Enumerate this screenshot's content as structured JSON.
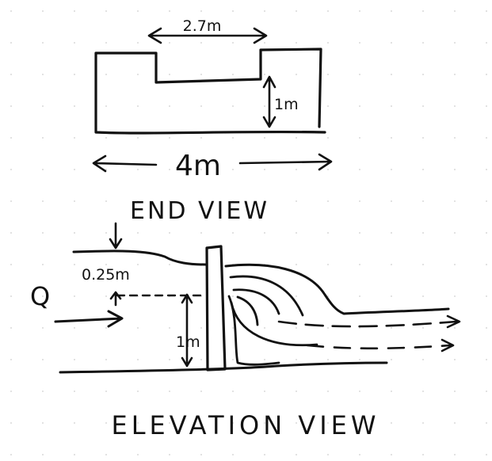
{
  "end_view": {
    "notch_width_label": "2.7m",
    "notch_depth_label": "1m",
    "total_width_label": "4m",
    "caption": "END VIEW"
  },
  "elevation_view": {
    "head_label": "0.25m",
    "flow_label": "Q",
    "weir_height_label": "1m",
    "caption": "ELEVATION VIEW"
  }
}
